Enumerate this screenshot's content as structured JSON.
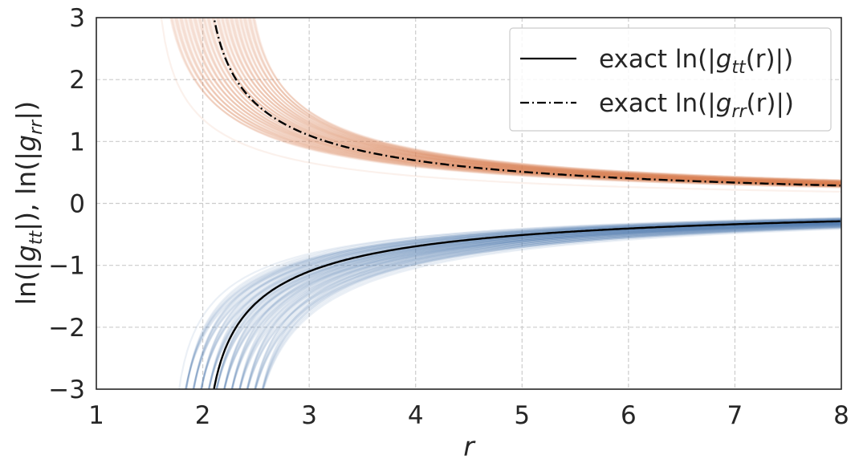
{
  "chart_data": {
    "type": "line",
    "xlabel": "r",
    "ylabel": "ln(|g_tt|), ln(|g_rr|)",
    "xlim": [
      1,
      8
    ],
    "ylim": [
      -3,
      3
    ],
    "xticks": [
      1,
      2,
      3,
      4,
      5,
      6,
      7,
      8
    ],
    "yticks": [
      -3,
      -2,
      -1,
      0,
      1,
      2,
      3
    ],
    "xtick_labels": [
      "1",
      "2",
      "3",
      "4",
      "5",
      "6",
      "7",
      "8"
    ],
    "ytick_labels": [
      "−3",
      "−2",
      "−1",
      "0",
      "1",
      "2",
      "3"
    ],
    "grid": true,
    "legend_position": "top-right",
    "series": [
      {
        "name": "exact ln(|g_tt(r)|)",
        "style": "solid",
        "color": "#000000",
        "x": [
          2.1,
          2.2,
          2.3,
          2.5,
          2.75,
          3.0,
          3.5,
          4.0,
          5.0,
          6.0,
          7.0,
          8.0
        ],
        "y": [
          -3.04,
          -2.4,
          -2.04,
          -1.61,
          -1.29,
          -1.1,
          -0.85,
          -0.69,
          -0.51,
          -0.41,
          -0.34,
          -0.29
        ]
      },
      {
        "name": "exact ln(|g_rr(r)|)",
        "style": "dashdot",
        "color": "#000000",
        "x": [
          2.15,
          2.2,
          2.3,
          2.5,
          2.75,
          3.0,
          3.5,
          4.0,
          5.0,
          6.0,
          7.0,
          8.0
        ],
        "y": [
          3.0,
          2.4,
          2.04,
          1.61,
          1.29,
          1.1,
          0.85,
          0.69,
          0.51,
          0.41,
          0.34,
          0.29
        ]
      }
    ],
    "ensemble_bands": [
      {
        "color": "#dd8452",
        "description_series": "g_rr samples"
      },
      {
        "color": "#4c72b0",
        "description_series": "g_tt samples"
      }
    ],
    "legend": {
      "tt_prefix": "exact ln(|",
      "tt_g": "g",
      "tt_sub": "tt",
      "tt_suffix": "(r)|)",
      "rr_prefix": "exact ln(|",
      "rr_g": "g",
      "rr_sub": "rr",
      "rr_suffix": "(r)|)"
    },
    "ylabel_parts": {
      "p1": "ln(|",
      "g1": "g",
      "s1": "tt",
      "p2": "|), ln(|",
      "g2": "g",
      "s2": "rr",
      "p3": "|)"
    }
  }
}
